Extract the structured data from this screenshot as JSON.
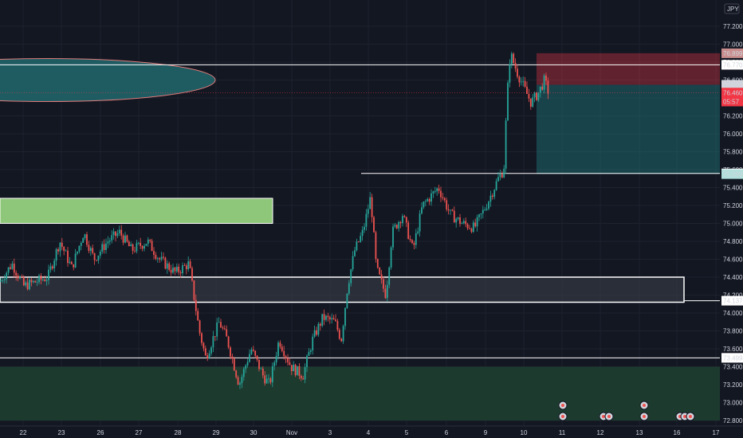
{
  "chart_data": {
    "type": "candlestick",
    "currency_label": "JPY",
    "x_ticks": [
      "22",
      "23",
      "26",
      "27",
      "28",
      "29",
      "30",
      "Nov",
      "3",
      "4",
      "5",
      "6",
      "9",
      "10",
      "11",
      "12",
      "13",
      "16",
      "17"
    ],
    "y_ticks": [
      "72.800",
      "73.000",
      "73.200",
      "73.400",
      "73.600",
      "73.800",
      "74.000",
      "74.200",
      "74.400",
      "74.600",
      "74.800",
      "75.000",
      "75.200",
      "75.400",
      "75.600",
      "75.800",
      "76.000",
      "76.200",
      "76.400",
      "76.600",
      "76.800",
      "77.000",
      "77.200"
    ],
    "ylim": [
      72.75,
      77.4
    ],
    "price_badges": [
      {
        "label": "76.899",
        "value": 76.899,
        "bg": "#c98d8d",
        "fg": "#131722"
      },
      {
        "label": "76.770",
        "value": 76.77,
        "bg": "#ffffff",
        "fg": "#131722"
      },
      {
        "label": "76.547",
        "value": 76.547,
        "bg": "#d1d4dc",
        "fg": "#131722"
      },
      {
        "label": "76.460",
        "value": 76.46,
        "bg": "#f23645",
        "fg": "#ffffff"
      },
      {
        "label": "05:57",
        "value": 76.36,
        "bg": "#f23645",
        "fg": "#ffffff"
      },
      {
        "label": "75.558",
        "value": 75.558,
        "bg": "#ffffff",
        "fg": "#131722"
      },
      {
        "label": "75.550",
        "value": 75.55,
        "bg": "#b2dfdb",
        "fg": "#131722"
      },
      {
        "label": "74.137",
        "value": 74.137,
        "bg": "#ffffff",
        "fg": "#131722"
      },
      {
        "label": "73.499",
        "value": 73.499,
        "bg": "#ffffff",
        "fg": "#131722"
      }
    ],
    "horizontal_lines": [
      {
        "value": 76.77,
        "color": "#ffffff"
      },
      {
        "value": 75.558,
        "color": "#ffffff"
      },
      {
        "value": 74.137,
        "color": "#ffffff"
      },
      {
        "value": 73.499,
        "color": "#ffffff"
      }
    ],
    "zones": [
      {
        "name": "green-supply",
        "from": 75.0,
        "to": 75.28,
        "color": "#8fc77a"
      },
      {
        "name": "gray-support",
        "from": 74.12,
        "to": 74.4,
        "color": "#3a3d48"
      },
      {
        "name": "demand-bottom",
        "from": 72.8,
        "to": 73.4,
        "color": "#1d3a2f"
      }
    ],
    "position": {
      "stop": 76.899,
      "entry": 76.547,
      "target": 75.55
    },
    "colors": {
      "up": "#26a69a",
      "down": "#ef5350",
      "background": "#131722",
      "ellipse_fill": "#1f5c62",
      "ellipse_stroke": "#e07a7a"
    }
  }
}
